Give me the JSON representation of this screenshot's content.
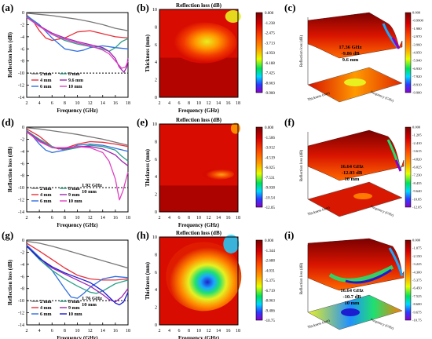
{
  "figure": {
    "panel_labels": [
      "(a)",
      "(b)",
      "(c)",
      "(d)",
      "(e)",
      "(f)",
      "(g)",
      "(h)",
      "(i)"
    ]
  },
  "chart_data": [
    {
      "panel": "(a)",
      "type": "line",
      "xlabel": "Frequency (GHz)",
      "ylabel": "Reflection loss (dB)",
      "xlim": [
        2,
        18
      ],
      "ylim": [
        -14,
        0
      ],
      "xticks": [
        "2",
        "4",
        "6",
        "8",
        "10",
        "12",
        "14",
        "16",
        "18"
      ],
      "yticks": [
        "0",
        "-2",
        "-4",
        "-6",
        "-8",
        "-10",
        "-12",
        "-14"
      ],
      "reference_line": -10,
      "legend": [
        "2 mm",
        "4 mm",
        "6 mm",
        "8 mm",
        "9.6 mm",
        "10 mm"
      ],
      "series": [
        {
          "name": "2 mm",
          "color": "#777777",
          "x": [
            2,
            4,
            6,
            8,
            10,
            12,
            14,
            16,
            18
          ],
          "y": [
            -0.1,
            -0.3,
            -0.5,
            -0.8,
            -1.1,
            -1.5,
            -2.0,
            -2.6,
            -3.0
          ]
        },
        {
          "name": "4 mm",
          "color": "#e8303a",
          "x": [
            2,
            3,
            4,
            5,
            6,
            8,
            10,
            12,
            14,
            16,
            18
          ],
          "y": [
            -0.4,
            -1.4,
            -3.0,
            -4.2,
            -4.6,
            -4.2,
            -3.2,
            -3.0,
            -3.5,
            -4.0,
            -4.2
          ]
        },
        {
          "name": "6 mm",
          "color": "#2f6fe0",
          "x": [
            2,
            4,
            6,
            8,
            10,
            11,
            12,
            14,
            16,
            18
          ],
          "y": [
            -0.5,
            -2.0,
            -4.2,
            -6.0,
            -6.4,
            -6.2,
            -5.8,
            -5.5,
            -5.8,
            -6.0
          ]
        },
        {
          "name": "8 mm",
          "color": "#2ca089",
          "x": [
            2,
            4,
            6,
            8,
            10,
            12,
            14,
            15,
            16,
            17,
            18
          ],
          "y": [
            -0.7,
            -2.2,
            -3.6,
            -4.6,
            -5.2,
            -5.6,
            -6.0,
            -6.4,
            -5.8,
            -4.8,
            -4.3
          ]
        },
        {
          "name": "9.6 mm",
          "color": "#9c27b0",
          "x": [
            2,
            4,
            6,
            8,
            10,
            12,
            14,
            15,
            16,
            16.6,
            17.36,
            17.8,
            18
          ],
          "y": [
            -0.8,
            -2.2,
            -3.4,
            -4.2,
            -4.8,
            -5.3,
            -5.8,
            -6.4,
            -7.6,
            -9.0,
            -9.86,
            -9.0,
            -7.5
          ]
        },
        {
          "name": "10 mm",
          "color": "#e040c0",
          "x": [
            2,
            4,
            6,
            8,
            10,
            12,
            14,
            15,
            16,
            17,
            17.6,
            18
          ],
          "y": [
            -0.8,
            -2.3,
            -3.6,
            -4.4,
            -5.0,
            -5.5,
            -6.2,
            -6.8,
            -8.0,
            -9.2,
            -9.0,
            -8.0
          ]
        }
      ]
    },
    {
      "panel": "(b)",
      "type": "heatmap",
      "title": "Reflection loss (dB)",
      "xlabel": "Frequency (GHz)",
      "ylabel": "Thickness (mm)",
      "xlim": [
        2,
        18
      ],
      "ylim": [
        0,
        10
      ],
      "xticks": [
        "2",
        "4",
        "6",
        "8",
        "10",
        "12",
        "14",
        "16",
        "18"
      ],
      "yticks": [
        "0",
        "2",
        "4",
        "6",
        "8",
        "10"
      ],
      "colorbar_ticks": [
        "0.000",
        "-1.238",
        "-2.475",
        "-3.713",
        "-4.950",
        "-6.188",
        "-7.425",
        "-8.663",
        "-9.900"
      ]
    },
    {
      "panel": "(c)",
      "type": "surface3d",
      "annotation": [
        "17.36 GHz",
        "-9.86 dB",
        "9.6 mm"
      ],
      "zlabel": "Reflection loss (dB)",
      "axis_labels": [
        "Thickness (mm)",
        "Frequency (GHz)"
      ],
      "colorbar_ticks": [
        "0.000",
        "-0.9900",
        "-1.980",
        "-2.970",
        "-3.960",
        "-4.950",
        "-5.940",
        "-6.930",
        "-7.920",
        "-8.910",
        "-9.900"
      ]
    },
    {
      "panel": "(d)",
      "type": "line",
      "xlabel": "Frequency (GHz)",
      "ylabel": "Reflection loss (dB)",
      "xlim": [
        2,
        18
      ],
      "ylim": [
        -14,
        0
      ],
      "xticks": [
        "2",
        "4",
        "6",
        "8",
        "10",
        "12",
        "14",
        "16",
        "18"
      ],
      "yticks": [
        "0",
        "-2",
        "-4",
        "-6",
        "-8",
        "-10",
        "-12",
        "-14"
      ],
      "reference_line": -10,
      "annotation": [
        "1.92 GHz",
        "10 mm"
      ],
      "legend": [
        "2 mm",
        "4 mm",
        "6 mm",
        "8 mm",
        "9 mm",
        "10 mm"
      ],
      "series": [
        {
          "name": "2 mm",
          "color": "#777777",
          "x": [
            2,
            4,
            6,
            8,
            10,
            12,
            14,
            16,
            18
          ],
          "y": [
            -0.1,
            -0.3,
            -0.6,
            -0.9,
            -1.2,
            -1.6,
            -2.0,
            -2.5,
            -3.0
          ]
        },
        {
          "name": "4 mm",
          "color": "#e8303a",
          "x": [
            2,
            4,
            6,
            7,
            8,
            10,
            12,
            14,
            16,
            18
          ],
          "y": [
            -0.3,
            -1.5,
            -3.2,
            -3.6,
            -3.5,
            -2.8,
            -2.4,
            -2.5,
            -2.8,
            -3.2
          ]
        },
        {
          "name": "6 mm",
          "color": "#2f6fe0",
          "x": [
            2,
            3,
            4,
            5,
            6,
            8,
            10,
            12,
            14,
            16,
            18
          ],
          "y": [
            -0.5,
            -1.6,
            -2.8,
            -3.8,
            -4.2,
            -3.8,
            -3.0,
            -2.8,
            -3.0,
            -3.5,
            -4.0
          ]
        },
        {
          "name": "8 mm",
          "color": "#2ca089",
          "x": [
            2,
            4,
            6,
            8,
            10,
            12,
            14,
            16,
            17,
            18
          ],
          "y": [
            -0.6,
            -2.0,
            -3.2,
            -3.8,
            -3.4,
            -3.0,
            -3.2,
            -3.8,
            -4.8,
            -5.6
          ]
        },
        {
          "name": "9 mm",
          "color": "#9c27b0",
          "x": [
            2,
            4,
            6,
            8,
            10,
            12,
            14,
            16,
            17,
            18
          ],
          "y": [
            -0.7,
            -2.2,
            -3.4,
            -3.6,
            -3.2,
            -3.2,
            -3.6,
            -4.6,
            -5.6,
            -6.4
          ]
        },
        {
          "name": "10 mm",
          "color": "#e040c0",
          "x": [
            2,
            4,
            6,
            8,
            10,
            12,
            14,
            15,
            16,
            16.64,
            17.2,
            18
          ],
          "y": [
            -0.8,
            -2.4,
            -3.4,
            -3.4,
            -3.2,
            -3.4,
            -4.2,
            -5.6,
            -8.6,
            -12.03,
            -10.5,
            -7.4
          ]
        }
      ]
    },
    {
      "panel": "(e)",
      "type": "heatmap",
      "title": "Reflection loss (dB)",
      "xlabel": "Frequency (GHz)",
      "ylabel": "Thickness (mm)",
      "xlim": [
        2,
        18
      ],
      "ylim": [
        0,
        10
      ],
      "xticks": [
        "2",
        "4",
        "6",
        "8",
        "10",
        "12",
        "14",
        "16",
        "18"
      ],
      "yticks": [
        "0",
        "2",
        "4",
        "6",
        "8",
        "10"
      ],
      "colorbar_ticks": [
        "0.000",
        "-1.506",
        "-3.012",
        "-4.519",
        "-6.025",
        "-7.531",
        "-9.038",
        "-10.54",
        "-12.05"
      ]
    },
    {
      "panel": "(f)",
      "type": "surface3d",
      "annotation": [
        "16.64 GHz",
        "-12.03 dB",
        "10 mm"
      ],
      "zlabel": "Reflection loss (dB)",
      "axis_labels": [
        "Thickness (mm)",
        "Frequency (GHz)"
      ],
      "colorbar_ticks": [
        "0.000",
        "-1.205",
        "-2.410",
        "-3.615",
        "-4.820",
        "-6.025",
        "-7.230",
        "-8.435",
        "-9.640",
        "-10.85",
        "-12.05"
      ]
    },
    {
      "panel": "(g)",
      "type": "line",
      "xlabel": "Frequency (GHz)",
      "ylabel": "Reflection loss (dB)",
      "xlim": [
        2,
        18
      ],
      "ylim": [
        -14,
        0
      ],
      "xticks": [
        "2",
        "4",
        "6",
        "8",
        "10",
        "12",
        "14",
        "16",
        "18"
      ],
      "yticks": [
        "0",
        "-2",
        "-4",
        "-6",
        "-8",
        "-10",
        "-12",
        "-14"
      ],
      "reference_line": -10,
      "annotation": [
        "1.76 GHz",
        "10 mm"
      ],
      "legend": [
        "2 mm",
        "4 mm",
        "6 mm",
        "8 mm",
        "9 mm",
        "10 mm"
      ],
      "series": [
        {
          "name": "2 mm",
          "color": "#777777",
          "x": [
            2,
            4,
            6,
            8,
            10,
            12,
            14,
            16,
            18
          ],
          "y": [
            -0.2,
            -0.5,
            -1.0,
            -1.6,
            -2.2,
            -2.8,
            -3.4,
            -4.0,
            -4.6
          ]
        },
        {
          "name": "4 mm",
          "color": "#e8303a",
          "x": [
            2,
            4,
            6,
            8,
            10,
            12,
            14,
            16,
            18
          ],
          "y": [
            -0.5,
            -1.8,
            -3.2,
            -4.6,
            -5.8,
            -6.4,
            -6.6,
            -6.6,
            -6.4
          ]
        },
        {
          "name": "6 mm",
          "color": "#2f6fe0",
          "x": [
            2,
            4,
            6,
            8,
            9,
            10,
            11,
            12,
            14,
            16,
            18
          ],
          "y": [
            -0.8,
            -2.8,
            -5.0,
            -8.0,
            -9.4,
            -9.6,
            -8.8,
            -7.8,
            -6.4,
            -6.0,
            -6.2
          ]
        },
        {
          "name": "8 mm",
          "color": "#2ca089",
          "x": [
            2,
            4,
            6,
            8,
            10,
            12,
            13,
            14,
            16,
            18
          ],
          "y": [
            -1.0,
            -3.2,
            -5.0,
            -6.4,
            -7.6,
            -8.6,
            -8.8,
            -8.4,
            -7.2,
            -6.6
          ]
        },
        {
          "name": "9 mm",
          "color": "#9c27b0",
          "x": [
            2,
            4,
            6,
            8,
            10,
            12,
            14,
            15,
            16,
            17,
            18
          ],
          "y": [
            -1.0,
            -3.0,
            -4.6,
            -5.6,
            -6.6,
            -7.6,
            -9.0,
            -9.8,
            -10.2,
            -9.4,
            -8.0
          ]
        },
        {
          "name": "10 mm",
          "color": "#1c1cd0",
          "x": [
            2,
            4,
            6,
            8,
            10,
            12,
            14,
            15,
            16,
            16.64,
            17.3,
            18
          ],
          "y": [
            -1.0,
            -3.0,
            -4.4,
            -5.4,
            -6.2,
            -7.0,
            -8.4,
            -9.4,
            -10.4,
            -10.7,
            -10.2,
            -8.6
          ]
        }
      ]
    },
    {
      "panel": "(h)",
      "type": "heatmap",
      "title": "Reflection loss (dB)",
      "xlabel": "Frequency (GHz)",
      "ylabel": "Thickness (mm)",
      "xlim": [
        2,
        18
      ],
      "ylim": [
        0,
        10
      ],
      "xticks": [
        "2",
        "4",
        "6",
        "8",
        "10",
        "12",
        "14",
        "16",
        "18"
      ],
      "yticks": [
        "0",
        "2",
        "4",
        "6",
        "8",
        "10"
      ],
      "colorbar_ticks": [
        "0.000",
        "-1.344",
        "-2.688",
        "-4.031",
        "-5.375",
        "-6.719",
        "-8.063",
        "-9.406",
        "-10.75"
      ]
    },
    {
      "panel": "(i)",
      "type": "surface3d",
      "annotation": [
        "16.64 GHz",
        "-10.7 dB",
        "10 mm"
      ],
      "zlabel": "Reflection loss (dB)",
      "axis_labels": [
        "Thickness (mm)",
        "Frequency (GHz)"
      ],
      "colorbar_ticks": [
        "0.000",
        "-1.075",
        "-2.150",
        "-3.225",
        "-4.300",
        "-5.375",
        "-6.450",
        "-7.525",
        "-8.600",
        "-9.675",
        "-10.75"
      ]
    }
  ]
}
